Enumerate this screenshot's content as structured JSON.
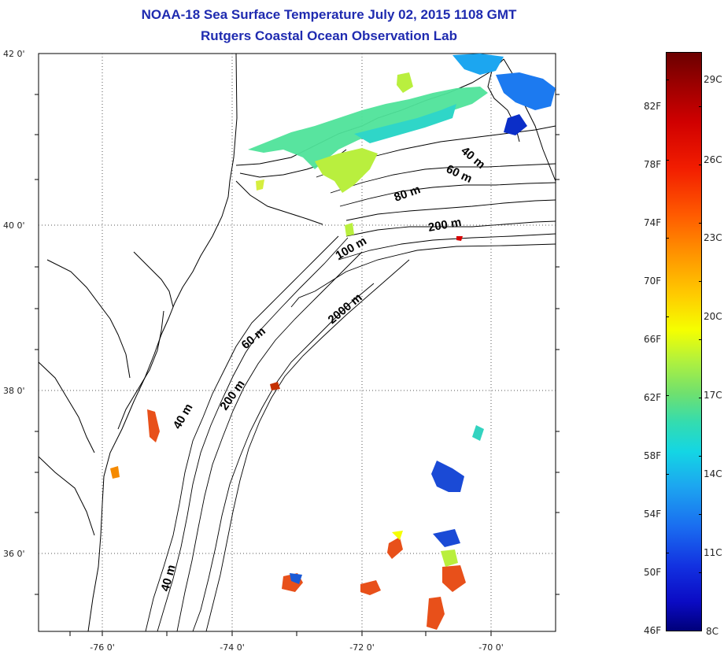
{
  "title": {
    "line1": "NOAA-18 Sea Surface Temperature July 02, 2015 1108 GMT",
    "line2": "Rutgers Coastal Ocean Observation Lab"
  },
  "axes": {
    "lat_labels": [
      "42 0'",
      "40 0'",
      "38 0'",
      "36 0'"
    ],
    "lon_labels": [
      "-76 0'",
      "-74 0'",
      "-72 0'",
      "-70 0'"
    ]
  },
  "isobaths": [
    "40 m",
    "60 m",
    "80 m",
    "200 m",
    "100 m",
    "2000 m",
    "60 m",
    "40 m",
    "200 m",
    "40 m"
  ],
  "colorbar": {
    "fahrenheit_labels": [
      "82F",
      "78F",
      "74F",
      "70F",
      "66F",
      "62F",
      "58F",
      "54F",
      "50F",
      "46F"
    ],
    "celsius_labels": [
      "29C",
      "26C",
      "23C",
      "20C",
      "17C",
      "14C",
      "11C",
      "8C"
    ],
    "top_color": "#6b0000",
    "bottom_color": "#00007a"
  },
  "colors": {
    "title": "#1f2bb0",
    "warm": "#e8501a",
    "cool": "#1a5ad6",
    "shelf": "#4fe39a"
  }
}
